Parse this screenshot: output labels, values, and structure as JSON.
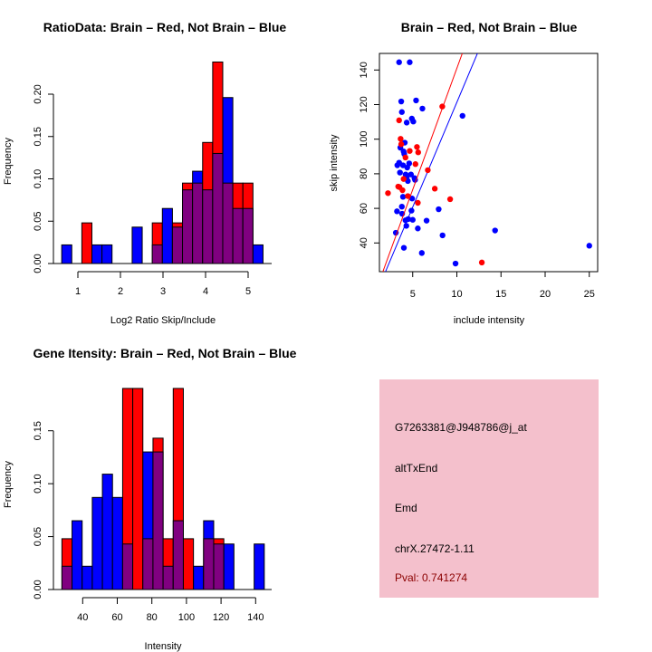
{
  "colors": {
    "brain": "#ff0000",
    "not_brain": "#0000ff",
    "overlap": "#800080",
    "info_bg": "#f4c0cc",
    "pval": "#8b0000"
  },
  "chart_data": [
    {
      "type": "bar",
      "title": "RatioData: Brain – Red, Not Brain – Blue",
      "xlabel": "Log2 Ratio Skip/Include",
      "ylabel": "Frequency",
      "bin_start": 0.62,
      "bin_width": 0.2365,
      "xticks": [
        1,
        2,
        3,
        4,
        5
      ],
      "yticks": [
        "0.00",
        "0.05",
        "0.10",
        "0.15",
        "0.20"
      ],
      "series": [
        {
          "name": "Brain",
          "values": [
            0,
            0,
            0.048,
            0,
            0,
            0,
            0,
            0,
            0,
            0.048,
            0,
            0.048,
            0.095,
            0.095,
            0.143,
            0.238,
            0.095,
            0.095,
            0.095,
            0
          ]
        },
        {
          "name": "Not Brain",
          "values": [
            0.022,
            0,
            0,
            0.022,
            0.022,
            0,
            0,
            0.043,
            0,
            0.022,
            0.065,
            0.043,
            0.087,
            0.109,
            0.087,
            0.13,
            0.196,
            0.065,
            0.065,
            0.022
          ]
        }
      ]
    },
    {
      "type": "scatter",
      "title": "Brain – Red, Not Brain – Blue",
      "xlabel": "include intensity",
      "ylabel": "skip intensity",
      "xlim": [
        1.26,
        26
      ],
      "ylim": [
        23.4,
        149.4
      ],
      "xticks": [
        5,
        10,
        15,
        20,
        25
      ],
      "yticks": [
        40,
        60,
        80,
        100,
        120,
        140
      ],
      "series": [
        {
          "name": "Not Brain",
          "points": [
            [
              3.46,
              144.5
            ],
            [
              4.66,
              144.5
            ],
            [
              3.7,
              121.8
            ],
            [
              5.38,
              122.4
            ],
            [
              3.77,
              115.7
            ],
            [
              6.1,
              117.7
            ],
            [
              10.64,
              113.5
            ],
            [
              4.9,
              111.9
            ],
            [
              4.32,
              109.6
            ],
            [
              5.07,
              110.2
            ],
            [
              4.1,
              98
            ],
            [
              3.6,
              95.1
            ],
            [
              3.97,
              92.9
            ],
            [
              4.04,
              91.5
            ],
            [
              3.46,
              86.4
            ],
            [
              3.26,
              84.9
            ],
            [
              4.6,
              86
            ],
            [
              3.9,
              84.9
            ],
            [
              4.38,
              83.6
            ],
            [
              3.56,
              80.7
            ],
            [
              4.2,
              79.6
            ],
            [
              4.8,
              79.6
            ],
            [
              4.45,
              75.8
            ],
            [
              5.2,
              77.5
            ],
            [
              5.27,
              76.5
            ],
            [
              4.32,
              78.2
            ],
            [
              3.9,
              66.7
            ],
            [
              4.93,
              65.7
            ],
            [
              3.77,
              61
            ],
            [
              3.22,
              58.3
            ],
            [
              4.86,
              58.7
            ],
            [
              3.8,
              56.9
            ],
            [
              4.18,
              53.1
            ],
            [
              4.49,
              53.8
            ],
            [
              5,
              53.4
            ],
            [
              6.57,
              52.9
            ],
            [
              4.28,
              49.9
            ],
            [
              5.58,
              48.4
            ],
            [
              7.94,
              59.5
            ],
            [
              3.09,
              45.9
            ],
            [
              8.38,
              44.4
            ],
            [
              14.33,
              47.2
            ],
            [
              4,
              37.2
            ],
            [
              6.03,
              34.2
            ],
            [
              9.85,
              28.1
            ],
            [
              25,
              38.4
            ]
          ],
          "fit": {
            "slope": 12.12,
            "intercept": 0.13
          }
        },
        {
          "name": "Brain",
          "points": [
            [
              3.46,
              110.9
            ],
            [
              3.63,
              100.2
            ],
            [
              3.7,
              97.1
            ],
            [
              4.66,
              93.2
            ],
            [
              5.48,
              95.5
            ],
            [
              5.62,
              92.4
            ],
            [
              4.18,
              89.4
            ],
            [
              5.31,
              85.6
            ],
            [
              6.71,
              82.1
            ],
            [
              8.35,
              118.9
            ],
            [
              3.36,
              72.6
            ],
            [
              3.5,
              72.3
            ],
            [
              3.84,
              70.5
            ],
            [
              2.2,
              68.8
            ],
            [
              7.5,
              71.4
            ],
            [
              4.45,
              67.1
            ],
            [
              5.58,
              63.2
            ],
            [
              9.24,
              65.3
            ],
            [
              12.83,
              28.7
            ],
            [
              3.97,
              77
            ]
          ],
          "fit": {
            "slope": 14.03,
            "intercept": 0.67
          }
        }
      ]
    },
    {
      "type": "bar",
      "title": "Gene Itensity: Brain – Red, Not Brain – Blue",
      "xlabel": "Intensity",
      "ylabel": "Frequency",
      "bin_start": 28,
      "bin_width": 5.85,
      "xticks": [
        40,
        60,
        80,
        100,
        120,
        140
      ],
      "yticks": [
        "0.00",
        "0.05",
        "0.10",
        "0.15"
      ],
      "series": [
        {
          "name": "Brain",
          "values": [
            0.048,
            0,
            0,
            0,
            0,
            0,
            0.19,
            0.19,
            0.048,
            0.143,
            0.048,
            0.19,
            0.048,
            0,
            0.048,
            0.048,
            0,
            0,
            0,
            0
          ]
        },
        {
          "name": "Not Brain",
          "values": [
            0.022,
            0.065,
            0.022,
            0.087,
            0.109,
            0.087,
            0.043,
            0,
            0.13,
            0.13,
            0.022,
            0.065,
            0,
            0.022,
            0.065,
            0.043,
            0.043,
            0,
            0,
            0.043
          ]
        }
      ]
    }
  ],
  "info": {
    "probe": "G7263381@J948786@j_at",
    "event": "altTxEnd",
    "type": "Emd",
    "location": "chrX.27472-1.11",
    "pval": "Pval: 0.741274"
  }
}
